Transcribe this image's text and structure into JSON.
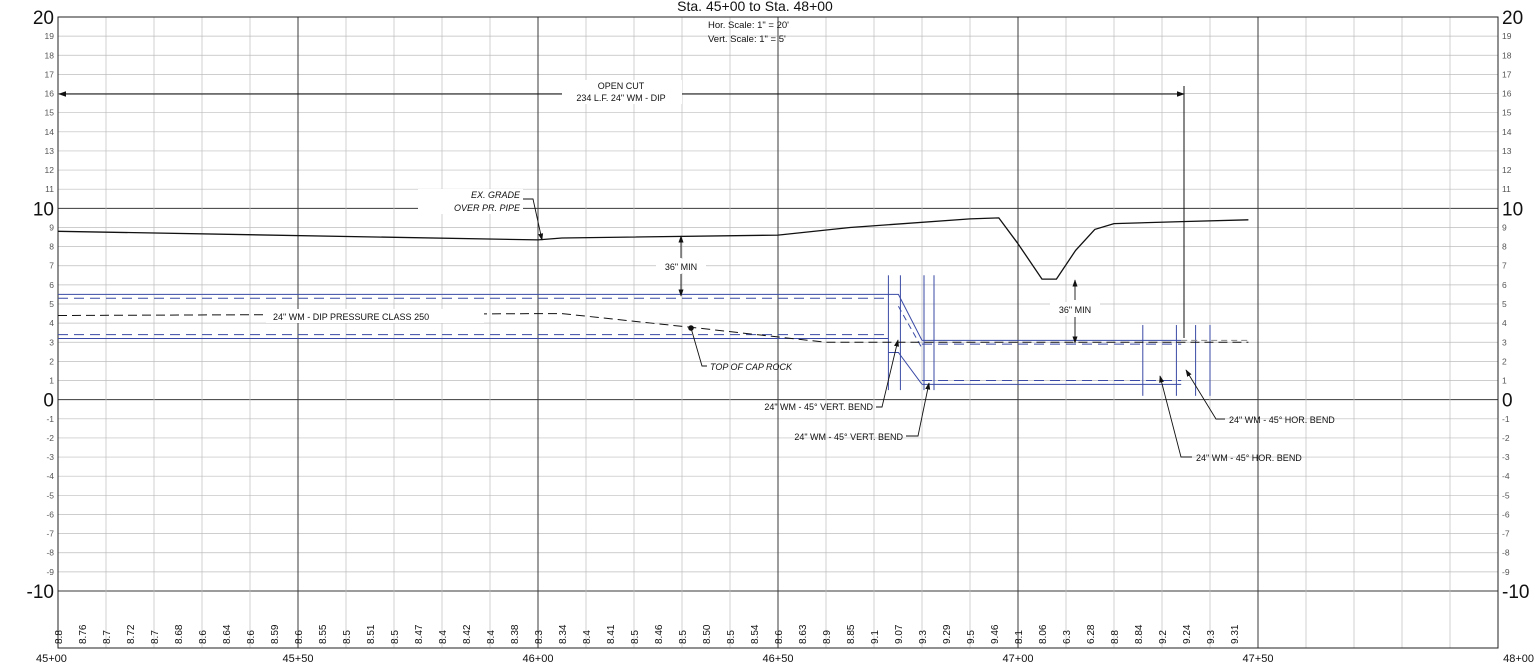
{
  "header": {
    "title": "Sta. 45+00 to Sta. 48+00",
    "hor_scale": "Hor.  Scale:  1\"  =  20'",
    "vert_scale": "Vert.  Scale:  1\"  =   5'"
  },
  "axes": {
    "y_range": [
      -10,
      20
    ],
    "x_range_ft": [
      4500,
      4800
    ],
    "left_major_labels": [
      {
        "value": 20,
        "text": "20"
      },
      {
        "value": 10,
        "text": "10"
      },
      {
        "value": 0,
        "text": "0"
      },
      {
        "value": -10,
        "text": "-10"
      }
    ],
    "right_major_labels": [
      {
        "value": 20,
        "text": "20"
      },
      {
        "value": 10,
        "text": "10"
      },
      {
        "value": 0,
        "text": "0"
      },
      {
        "value": -10,
        "text": "-10"
      }
    ],
    "minor_labels": [
      {
        "value": 19,
        "text": "19"
      },
      {
        "value": 18,
        "text": "18"
      },
      {
        "value": 17,
        "text": "17"
      },
      {
        "value": 16,
        "text": "16"
      },
      {
        "value": 15,
        "text": "15"
      },
      {
        "value": 14,
        "text": "14"
      },
      {
        "value": 13,
        "text": "13"
      },
      {
        "value": 12,
        "text": "12"
      },
      {
        "value": 11,
        "text": "11"
      },
      {
        "value": 9,
        "text": "9"
      },
      {
        "value": 8,
        "text": "8"
      },
      {
        "value": 7,
        "text": "7"
      },
      {
        "value": 6,
        "text": "6"
      },
      {
        "value": 5,
        "text": "5"
      },
      {
        "value": 4,
        "text": "4"
      },
      {
        "value": 3,
        "text": "3"
      },
      {
        "value": 2,
        "text": "2"
      },
      {
        "value": 1,
        "text": "1"
      },
      {
        "value": -1,
        "text": "-1"
      },
      {
        "value": -2,
        "text": "-2"
      },
      {
        "value": -3,
        "text": "-3"
      },
      {
        "value": -4,
        "text": "-4"
      },
      {
        "value": -5,
        "text": "-5"
      },
      {
        "value": -6,
        "text": "-6"
      },
      {
        "value": -7,
        "text": "-7"
      },
      {
        "value": -8,
        "text": "-8"
      },
      {
        "value": -9,
        "text": "-9"
      }
    ],
    "stations": [
      {
        "ft": 4500,
        "text": "45+00"
      },
      {
        "ft": 4550,
        "text": "45+50"
      },
      {
        "ft": 4600,
        "text": "46+00"
      },
      {
        "ft": 4650,
        "text": "46+50"
      },
      {
        "ft": 4700,
        "text": "47+00"
      },
      {
        "ft": 4750,
        "text": "47+50"
      },
      {
        "ft": 4800,
        "text": "48+00"
      }
    ]
  },
  "elevation_labels": [
    "8.8",
    "8.76",
    "8.7",
    "8.72",
    "8.7",
    "8.68",
    "8.6",
    "8.64",
    "8.6",
    "8.59",
    "8.6",
    "8.55",
    "8.5",
    "8.51",
    "8.5",
    "8.47",
    "8.4",
    "8.42",
    "8.4",
    "8.38",
    "8.3",
    "8.34",
    "8.4",
    "8.41",
    "8.5",
    "8.46",
    "8.5",
    "8.50",
    "8.5",
    "8.54",
    "8.6",
    "8.63",
    "8.9",
    "8.85",
    "9.1",
    "9.07",
    "9.3",
    "9.29",
    "9.5",
    "9.46",
    "8.1",
    "8.06",
    "6.3",
    "6.28",
    "8.8",
    "8.84",
    "9.2",
    "9.24",
    "9.3",
    "9.31"
  ],
  "annotations": {
    "open_cut_line1": "OPEN CUT",
    "open_cut_line2": "234 L.F. 24\" WM - DIP",
    "ex_grade_line1": "EX. GRADE",
    "ex_grade_line2": "OVER PR. PIPE",
    "min_cover_1": "36\" MIN",
    "min_cover_2": "36\" MIN",
    "pipe_label": "24\" WM - DIP PRESSURE CLASS 250",
    "top_cap_rock": "TOP OF CAP ROCK",
    "vert_bend_1": "24\" WM - 45° VERT. BEND",
    "vert_bend_2": "24\" WM - 45° VERT. BEND",
    "hor_bend_1": "24\" WM - 45° HOR. BEND",
    "hor_bend_2": "24\" WM - 45° HOR. BEND"
  },
  "profiles": {
    "existing_grade": [
      [
        4500,
        8.8
      ],
      [
        4600,
        8.35
      ],
      [
        4605,
        8.45
      ],
      [
        4650,
        8.6
      ],
      [
        4665,
        9.0
      ],
      [
        4690,
        9.45
      ],
      [
        4696,
        9.5
      ],
      [
        4700,
        8.15
      ],
      [
        4705,
        6.3
      ],
      [
        4708,
        6.3
      ],
      [
        4712,
        7.8
      ],
      [
        4716,
        8.9
      ],
      [
        4720,
        9.2
      ],
      [
        4735,
        9.31
      ],
      [
        4748,
        9.4
      ]
    ],
    "cap_rock": [
      [
        4500,
        4.4
      ],
      [
        4602,
        4.5
      ],
      [
        4605,
        4.5
      ],
      [
        4633,
        3.75
      ],
      [
        4660,
        3.0
      ],
      [
        4748,
        3.0
      ]
    ],
    "pipe_upper": {
      "top": 5.5,
      "bottom": 3.2,
      "centerline_top": 5.3,
      "centerline_bottom": 3.4,
      "end_ft": 4673
    },
    "pipe_lower": {
      "top": 3.1,
      "bottom": 0.8,
      "centerline_top": 2.9,
      "centerline_bottom": 1.0,
      "start_ft": 4680,
      "end_ft": 4734
    }
  },
  "colors": {
    "grid": "#bdbdbd",
    "grid_major": "#3a3a3a",
    "pipe": "#3a4aa5",
    "line": "#111111"
  }
}
